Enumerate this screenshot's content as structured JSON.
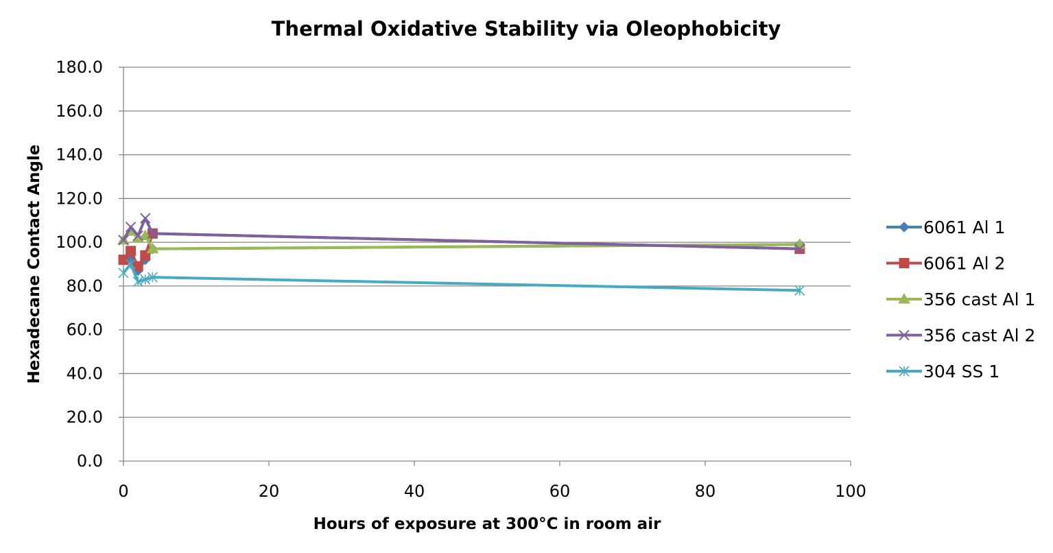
{
  "chart_data": {
    "type": "scatter",
    "title": "Thermal Oxidative Stability via Oleophobicity",
    "xlabel": "Hours of exposure at 300°C in room air",
    "ylabel": "Hexadecane Contact Angle",
    "xlim": [
      0,
      100
    ],
    "ylim": [
      0,
      180
    ],
    "x_ticks": [
      "0",
      "20",
      "40",
      "60",
      "80",
      "100"
    ],
    "y_ticks": [
      "0.0",
      "20.0",
      "40.0",
      "60.0",
      "80.0",
      "100.0",
      "120.0",
      "140.0",
      "160.0",
      "180.0"
    ],
    "grid": "horizontal",
    "legend_position": "right",
    "lines": "straight with markers",
    "series": [
      {
        "name": "6061 Al 1",
        "color": "#4a7ebb",
        "marker": "diamond",
        "points": [
          [
            0,
            92
          ],
          [
            1,
            92
          ],
          [
            2,
            87
          ],
          [
            3,
            92
          ],
          [
            4,
            97
          ],
          [
            93,
            99
          ]
        ]
      },
      {
        "name": "6061 Al 2",
        "color": "#be4b48",
        "marker": "square",
        "points": [
          [
            0,
            92
          ],
          [
            1,
            96
          ],
          [
            2,
            89
          ],
          [
            3,
            94
          ],
          [
            4,
            104
          ],
          [
            93,
            97
          ]
        ]
      },
      {
        "name": "356 cast Al 1",
        "color": "#98b954",
        "marker": "triangle",
        "points": [
          [
            0,
            101
          ],
          [
            1,
            105
          ],
          [
            2,
            102
          ],
          [
            3,
            103
          ],
          [
            4,
            97
          ],
          [
            93,
            99
          ]
        ]
      },
      {
        "name": "356 cast Al 2",
        "color": "#7d60a0",
        "marker": "x",
        "points": [
          [
            0,
            101
          ],
          [
            1,
            107
          ],
          [
            2,
            103
          ],
          [
            3,
            111
          ],
          [
            4,
            104
          ],
          [
            93,
            97
          ]
        ]
      },
      {
        "name": "304 SS 1",
        "color": "#46aac5",
        "marker": "star",
        "points": [
          [
            0,
            86
          ],
          [
            1,
            90
          ],
          [
            2,
            82
          ],
          [
            3,
            83
          ],
          [
            4,
            84
          ],
          [
            93,
            78
          ]
        ]
      }
    ]
  }
}
